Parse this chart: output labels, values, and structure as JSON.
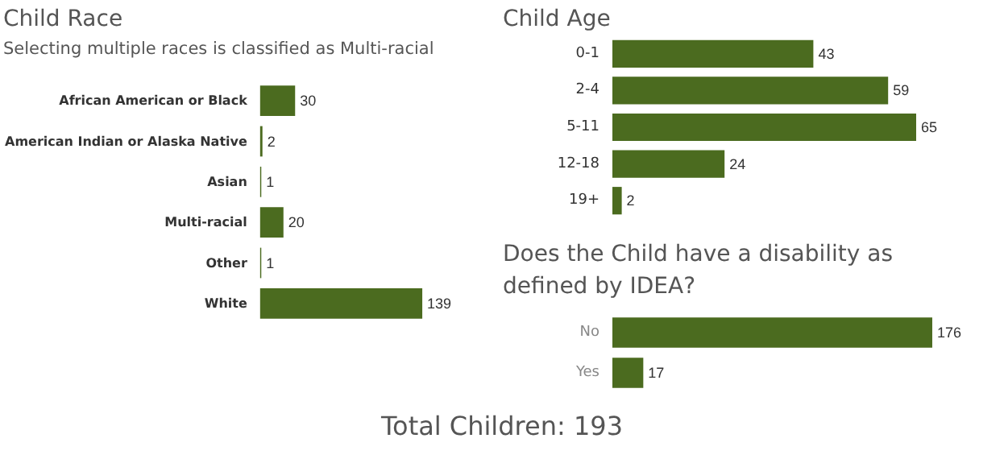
{
  "chart_data": [
    {
      "type": "bar",
      "orientation": "horizontal",
      "title": "Child Race",
      "subtitle": "Selecting multiple races is classified as Multi-racial",
      "categories": [
        "African American or Black",
        "American Indian or Alaska Native",
        "Asian",
        "Multi-racial",
        "Other",
        "White"
      ],
      "values": [
        30,
        2,
        1,
        20,
        1,
        139
      ],
      "color": "#4b6b1f",
      "data_labels": true
    },
    {
      "type": "bar",
      "orientation": "horizontal",
      "title": "Child Age",
      "categories": [
        "0-1",
        "2-4",
        "5-11",
        "12-18",
        "19+"
      ],
      "values": [
        43,
        59,
        65,
        24,
        2
      ],
      "color": "#4b6b1f",
      "data_labels": true
    },
    {
      "type": "bar",
      "orientation": "horizontal",
      "title": "Does the Child have a disability as defined by IDEA?",
      "categories": [
        "No",
        "Yes"
      ],
      "values": [
        176,
        17
      ],
      "color": "#4b6b1f",
      "data_labels": true
    },
    {
      "type": "other",
      "annotations": [
        "Total Children: 193"
      ]
    }
  ]
}
